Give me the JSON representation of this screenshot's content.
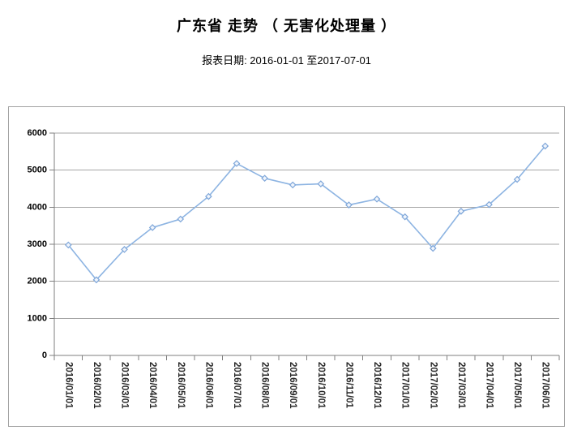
{
  "header": {
    "title": "广东省 走势 （ 无害化处理量 ）",
    "subtitle": "报表日期: 2016-01-01 至2017-07-01"
  },
  "chart_data": {
    "type": "line",
    "title": "广东省 走势 （ 无害化处理量 ）",
    "subtitle": "报表日期: 2016-01-01 至2017-07-01",
    "x": [
      "2016/01/01",
      "2016/02/01",
      "2016/03/01",
      "2016/04/01",
      "2016/05/01",
      "2016/06/01",
      "2016/07/01",
      "2016/08/01",
      "2016/09/01",
      "2016/10/01",
      "2016/11/01",
      "2016/12/01",
      "2017/01/01",
      "2017/02/01",
      "2017/03/01",
      "2017/04/01",
      "2017/05/01",
      "2017/06/01"
    ],
    "series": [
      {
        "name": "无害化处理量",
        "values": [
          2980,
          2040,
          2860,
          3450,
          3680,
          4290,
          5180,
          4780,
          4600,
          4630,
          4060,
          4220,
          3740,
          2890,
          3890,
          4070,
          4750,
          5650
        ]
      }
    ],
    "xlabel": "",
    "ylabel": "",
    "ylim": [
      0,
      6000
    ],
    "yticks": [
      0,
      1000,
      2000,
      3000,
      4000,
      5000,
      6000
    ],
    "grid": true,
    "legend_position": "none",
    "x_label_rotation_deg": 90,
    "marker": "diamond",
    "colors": {
      "line": "#8db4e2",
      "marker_stroke": "#7ea6d9",
      "marker_fill": "#f0f5fc",
      "gridline": "#a6a6a6",
      "axis": "#7f7f7f",
      "box_border": "#a3a3a3",
      "y_label": "#000000",
      "x_label": "#262626"
    }
  }
}
